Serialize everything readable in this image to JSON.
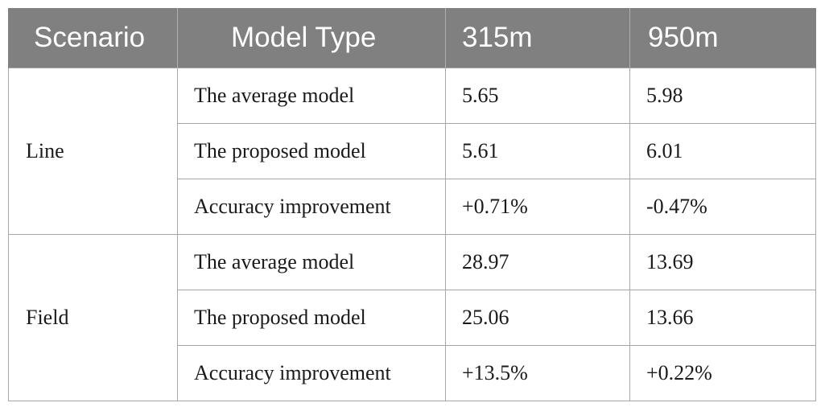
{
  "table": {
    "headers": [
      "Scenario",
      "Model Type",
      "315m",
      "950m"
    ],
    "groups": [
      {
        "scenario": "Line",
        "rows": [
          {
            "model": "The average model",
            "v315": "5.65",
            "v950": "5.98"
          },
          {
            "model": "The proposed model",
            "v315": "5.61",
            "v950": "6.01"
          },
          {
            "model": "Accuracy improvement",
            "v315": "+0.71%",
            "v950": "-0.47%"
          }
        ]
      },
      {
        "scenario": "Field",
        "rows": [
          {
            "model": "The average model",
            "v315": "28.97",
            "v950": "13.69"
          },
          {
            "model": "The proposed model",
            "v315": "25.06",
            "v950": "13.66"
          },
          {
            "model": "Accuracy improvement",
            "v315": "+13.5%",
            "v950": "+0.22%"
          }
        ]
      }
    ]
  },
  "colors": {
    "header_bg": "#808080",
    "header_text": "#ffffff",
    "grid": "#a6a6a6"
  }
}
